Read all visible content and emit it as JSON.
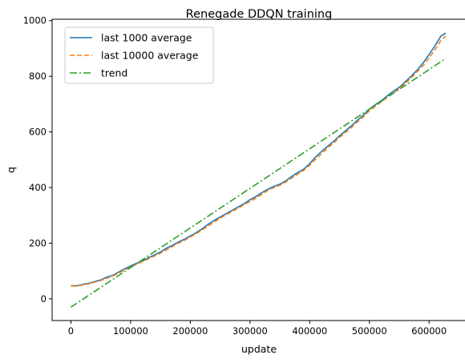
{
  "chart_data": {
    "type": "line",
    "title": "Renegade DDQN training",
    "xlabel": "update",
    "ylabel": "q",
    "xlim": [
      -31500,
      661500
    ],
    "ylim": [
      -78,
      1005
    ],
    "xticks": [
      0,
      100000,
      200000,
      300000,
      400000,
      500000,
      600000
    ],
    "xtick_labels": [
      "0",
      "100000",
      "200000",
      "300000",
      "400000",
      "500000",
      "600000"
    ],
    "yticks": [
      0,
      200,
      400,
      600,
      800,
      1000
    ],
    "ytick_labels": [
      "0",
      "200",
      "400",
      "600",
      "800",
      "1000"
    ],
    "grid": false,
    "legend_position": "top-left",
    "series": [
      {
        "name": "last 1000 average",
        "color": "#1f77b4",
        "style": "solid",
        "x": [
          0,
          10000,
          20000,
          30000,
          40000,
          50000,
          60000,
          70000,
          80000,
          90000,
          100000,
          110000,
          120000,
          130000,
          140000,
          150000,
          160000,
          170000,
          180000,
          190000,
          200000,
          210000,
          220000,
          230000,
          240000,
          250000,
          260000,
          270000,
          280000,
          290000,
          300000,
          310000,
          320000,
          330000,
          340000,
          350000,
          360000,
          370000,
          380000,
          390000,
          400000,
          410000,
          420000,
          430000,
          440000,
          450000,
          460000,
          470000,
          480000,
          490000,
          500000,
          510000,
          520000,
          530000,
          540000,
          550000,
          560000,
          570000,
          580000,
          590000,
          600000,
          610000,
          620000,
          628000
        ],
        "values": [
          47,
          47,
          52,
          56,
          62,
          68,
          78,
          84,
          96,
          108,
          118,
          128,
          136,
          148,
          158,
          168,
          182,
          192,
          204,
          214,
          226,
          238,
          252,
          268,
          282,
          294,
          306,
          318,
          330,
          342,
          356,
          368,
          382,
          394,
          404,
          412,
          424,
          440,
          454,
          466,
          486,
          510,
          530,
          548,
          566,
          586,
          604,
          622,
          642,
          660,
          682,
          698,
          712,
          730,
          746,
          760,
          780,
          800,
          822,
          848,
          878,
          910,
          945,
          955
        ]
      },
      {
        "name": "last 10000 average",
        "color": "#ff7f0e",
        "style": "dashed",
        "x": [
          0,
          10000,
          20000,
          30000,
          40000,
          50000,
          60000,
          70000,
          80000,
          90000,
          100000,
          110000,
          120000,
          130000,
          140000,
          150000,
          160000,
          170000,
          180000,
          190000,
          200000,
          210000,
          220000,
          230000,
          240000,
          250000,
          260000,
          270000,
          280000,
          290000,
          300000,
          310000,
          320000,
          330000,
          340000,
          350000,
          360000,
          370000,
          380000,
          390000,
          400000,
          410000,
          420000,
          430000,
          440000,
          450000,
          460000,
          470000,
          480000,
          490000,
          500000,
          510000,
          520000,
          530000,
          540000,
          550000,
          560000,
          570000,
          580000,
          590000,
          600000,
          610000,
          620000,
          628000
        ],
        "values": [
          46,
          46,
          50,
          54,
          60,
          66,
          74,
          82,
          92,
          104,
          114,
          124,
          134,
          144,
          154,
          164,
          176,
          188,
          200,
          210,
          222,
          234,
          248,
          262,
          276,
          290,
          302,
          314,
          326,
          338,
          350,
          362,
          376,
          390,
          400,
          408,
          420,
          434,
          448,
          462,
          480,
          502,
          522,
          542,
          560,
          580,
          598,
          616,
          636,
          654,
          676,
          692,
          708,
          724,
          740,
          756,
          774,
          794,
          816,
          838,
          866,
          896,
          930,
          945
        ]
      },
      {
        "name": "trend",
        "color": "#2ca02c",
        "style": "dashdot",
        "x": [
          0,
          628000
        ],
        "values": [
          -30,
          864
        ]
      }
    ]
  }
}
